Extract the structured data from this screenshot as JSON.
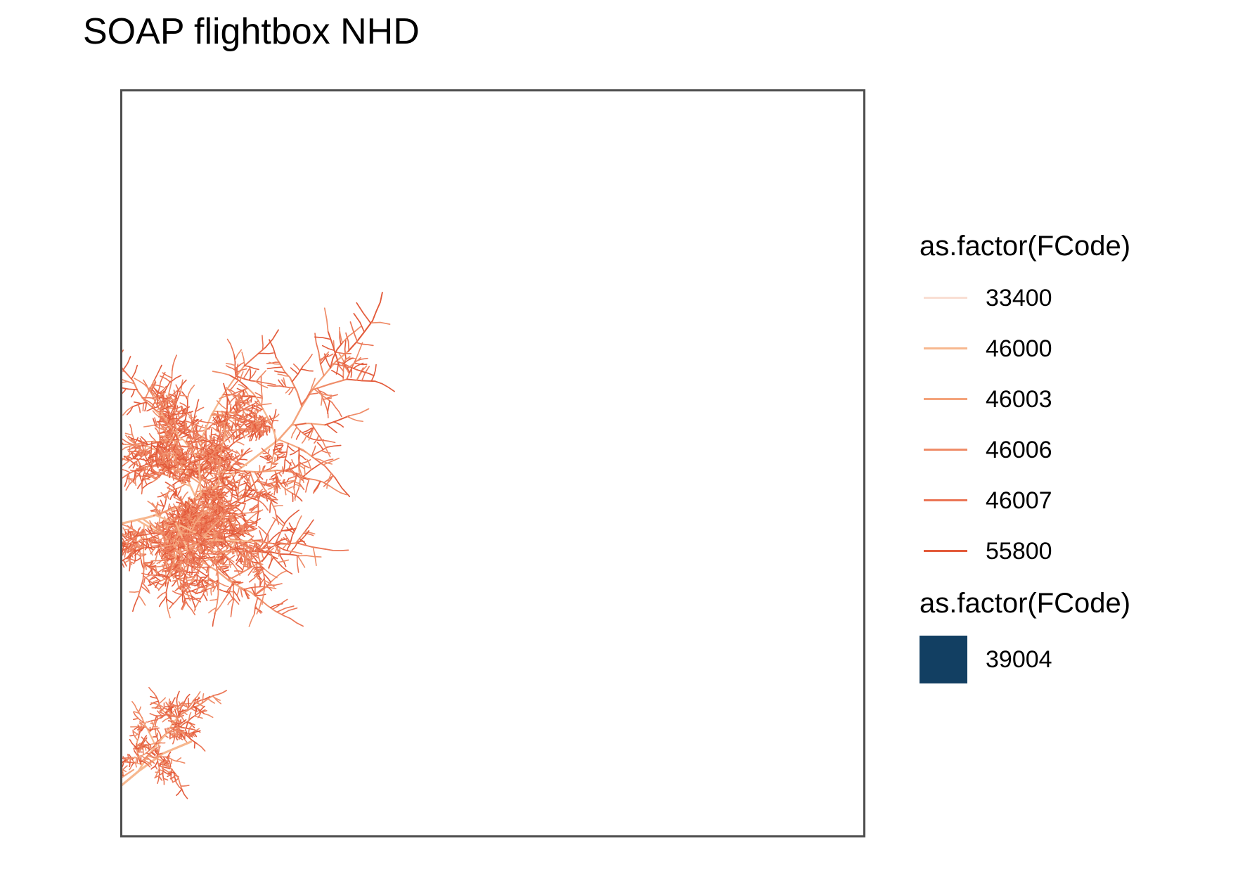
{
  "title": "SOAP flightbox NHD",
  "legend_lines": {
    "title": "as.factor(FCode)",
    "items": [
      {
        "label": "33400",
        "color": "#f9dfd3"
      },
      {
        "label": "46000",
        "color": "#f7b88f"
      },
      {
        "label": "46003",
        "color": "#f4a47c"
      },
      {
        "label": "46006",
        "color": "#ef8c68"
      },
      {
        "label": "46007",
        "color": "#eb7555"
      },
      {
        "label": "55800",
        "color": "#e35b3b"
      }
    ]
  },
  "legend_fill": {
    "title": "as.factor(FCode)",
    "items": [
      {
        "label": "39004",
        "color": "#123f62"
      }
    ]
  },
  "map": {
    "background": "#ffffff",
    "frame_color": "#4d4d4d",
    "feature_type": "flowlines"
  }
}
